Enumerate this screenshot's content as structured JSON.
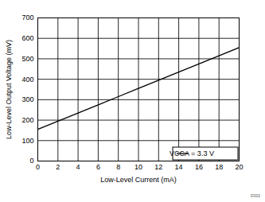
{
  "chart_data": {
    "type": "line",
    "x_label": "Low-Level Current (mA)",
    "y_label": "Low-Level Output Voltage (mV)",
    "x": [
      0,
      2,
      4,
      6,
      8,
      10,
      12,
      14,
      16,
      18,
      20
    ],
    "series": [
      {
        "name": "VCCA = 3.3 V",
        "color": "#000000",
        "values": [
          155,
          195,
          235,
          275,
          315,
          355,
          395,
          435,
          475,
          515,
          555
        ]
      }
    ],
    "xlim": [
      0,
      20
    ],
    "xticks": [
      0,
      2,
      4,
      6,
      8,
      10,
      12,
      14,
      16,
      18,
      20
    ],
    "ylim": [
      0,
      700
    ],
    "yticks": [
      0,
      100,
      200,
      300,
      400,
      500,
      600,
      700
    ],
    "grid": true,
    "legend": "lower right",
    "annotations": [
      "D002"
    ]
  }
}
